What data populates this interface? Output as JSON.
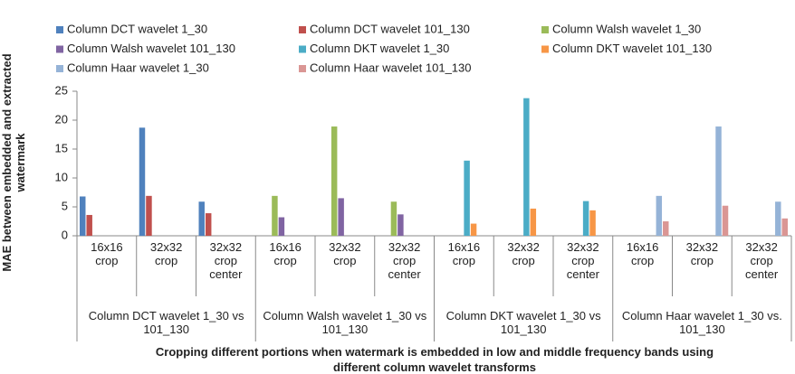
{
  "chart_data": {
    "type": "bar",
    "y_label": "MAE between embedded and extracted watermark",
    "x_label": "Cropping different portions when watermark is embedded in low and middle frequency bands using different column wavelet transforms",
    "categories": [
      "16x16 crop",
      "32x32 crop",
      "32x32 crop center",
      "16x16 crop",
      "32x32 crop",
      "32x32 crop center",
      "16x16 crop",
      "32x32 crop",
      "32x32 crop center",
      "16x16 crop",
      "32x32 crop",
      "32x32 crop center"
    ],
    "groups": [
      "Column DCT wavelet 1_30 vs 101_130",
      "Column Walsh wavelet 1_30 vs 101_130",
      "Column DKT wavelet 1_30 vs 101_130",
      "Column Haar wavelet 1_30 vs. 101_130"
    ],
    "series": [
      {
        "name": "Column DCT wavelet 1_30",
        "color": "#4f81bd",
        "values": [
          6.8,
          18.7,
          5.9,
          null,
          null,
          null,
          null,
          null,
          null,
          null,
          null,
          null
        ]
      },
      {
        "name": "Column DCT wavelet 101_130",
        "color": "#c0504d",
        "values": [
          3.6,
          6.9,
          3.9,
          null,
          null,
          null,
          null,
          null,
          null,
          null,
          null,
          null
        ]
      },
      {
        "name": "Column Walsh wavelet 1_30",
        "color": "#9bbb59",
        "values": [
          null,
          null,
          null,
          6.9,
          18.9,
          5.9,
          null,
          null,
          null,
          null,
          null,
          null
        ]
      },
      {
        "name": "Column Walsh wavelet 101_130",
        "color": "#8064a2",
        "values": [
          null,
          null,
          null,
          3.2,
          6.5,
          3.7,
          null,
          null,
          null,
          null,
          null,
          null
        ]
      },
      {
        "name": "Column DKT wavelet 1_30",
        "color": "#4bacc6",
        "values": [
          null,
          null,
          null,
          null,
          null,
          null,
          13.0,
          23.8,
          6.0,
          null,
          null,
          null
        ]
      },
      {
        "name": "Column DKT wavelet 101_130",
        "color": "#f79646",
        "values": [
          null,
          null,
          null,
          null,
          null,
          null,
          2.1,
          4.7,
          4.4,
          null,
          null,
          null
        ]
      },
      {
        "name": "Column Haar wavelet 1_30",
        "color": "#95b3d7",
        "values": [
          null,
          null,
          null,
          null,
          null,
          null,
          null,
          null,
          null,
          6.9,
          18.9,
          5.9
        ]
      },
      {
        "name": "Column Haar wavelet 101_130",
        "color": "#da9694",
        "values": [
          null,
          null,
          null,
          null,
          null,
          null,
          null,
          null,
          null,
          2.5,
          5.2,
          3.0
        ]
      }
    ],
    "ylim": [
      0,
      25
    ],
    "yticks": [
      0,
      5,
      10,
      15,
      20,
      25
    ],
    "grid": false
  }
}
